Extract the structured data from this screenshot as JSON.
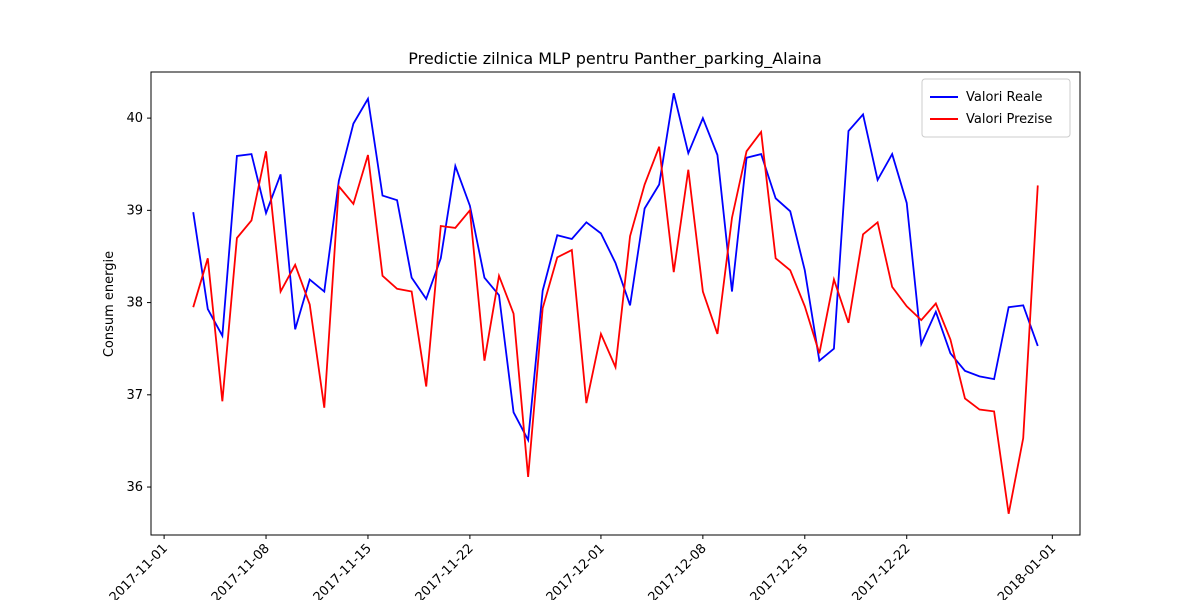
{
  "chart_data": {
    "type": "line",
    "title": "Predictie zilnica MLP pentru Panther_parking_Alaina",
    "ylabel": "Consum energie",
    "x": [
      "2017-11-03",
      "2017-11-04",
      "2017-11-05",
      "2017-11-06",
      "2017-11-07",
      "2017-11-08",
      "2017-11-09",
      "2017-11-10",
      "2017-11-11",
      "2017-11-12",
      "2017-11-13",
      "2017-11-14",
      "2017-11-15",
      "2017-11-16",
      "2017-11-17",
      "2017-11-18",
      "2017-11-19",
      "2017-11-20",
      "2017-11-21",
      "2017-11-22",
      "2017-11-23",
      "2017-11-24",
      "2017-11-25",
      "2017-11-26",
      "2017-11-27",
      "2017-11-28",
      "2017-11-29",
      "2017-11-30",
      "2017-12-01",
      "2017-12-02",
      "2017-12-03",
      "2017-12-04",
      "2017-12-05",
      "2017-12-06",
      "2017-12-07",
      "2017-12-08",
      "2017-12-09",
      "2017-12-10",
      "2017-12-11",
      "2017-12-12",
      "2017-12-13",
      "2017-12-14",
      "2017-12-15",
      "2017-12-16",
      "2017-12-17",
      "2017-12-18",
      "2017-12-19",
      "2017-12-20",
      "2017-12-21",
      "2017-12-22",
      "2017-12-23",
      "2017-12-24",
      "2017-12-25",
      "2017-12-26",
      "2017-12-27",
      "2017-12-28",
      "2017-12-29",
      "2017-12-30",
      "2017-12-31"
    ],
    "series": [
      {
        "name": "Valori Reale",
        "color": "#0000ff",
        "values": [
          38.98,
          37.93,
          37.64,
          39.59,
          39.61,
          38.97,
          39.39,
          37.71,
          38.25,
          38.12,
          39.32,
          39.94,
          40.21,
          39.16,
          39.11,
          38.27,
          38.04,
          38.48,
          39.48,
          39.05,
          38.27,
          38.08,
          36.81,
          36.51,
          38.13,
          38.73,
          38.69,
          38.87,
          38.75,
          38.43,
          37.97,
          39.02,
          39.28,
          40.27,
          39.62,
          40.0,
          39.6,
          38.12,
          39.57,
          39.61,
          39.13,
          38.99,
          38.35,
          37.37,
          37.5,
          39.86,
          40.04,
          39.33,
          39.61,
          39.08,
          37.55,
          37.9,
          37.45,
          37.26,
          37.2,
          37.17,
          37.95,
          37.97,
          37.53
        ]
      },
      {
        "name": "Valori Prezise",
        "color": "#ff0000",
        "values": [
          37.95,
          38.48,
          36.93,
          38.7,
          38.89,
          39.64,
          38.12,
          38.41,
          37.98,
          36.86,
          39.26,
          39.07,
          39.6,
          38.29,
          38.15,
          38.12,
          37.09,
          38.83,
          38.81,
          39.0,
          37.37,
          38.29,
          37.88,
          36.11,
          37.94,
          38.49,
          38.57,
          36.91,
          37.66,
          37.3,
          38.72,
          39.28,
          39.69,
          38.33,
          39.44,
          38.12,
          37.66,
          38.92,
          39.64,
          39.85,
          38.48,
          38.35,
          37.96,
          37.45,
          38.25,
          37.78,
          38.74,
          38.87,
          38.17,
          37.96,
          37.81,
          37.99,
          37.6,
          36.96,
          36.84,
          36.82,
          35.71,
          36.53,
          39.27
        ]
      }
    ],
    "xlim": [
      "2017-10-31T02:24",
      "2018-01-02T21:36"
    ],
    "xticks": [
      "2017-11-01",
      "2017-11-08",
      "2017-11-15",
      "2017-11-22",
      "2017-12-01",
      "2017-12-08",
      "2017-12-15",
      "2017-12-22",
      "2018-01-01"
    ],
    "ylim": [
      35.48,
      40.5
    ],
    "yticks": [
      36,
      37,
      38,
      39,
      40
    ],
    "legend": "upper right"
  }
}
